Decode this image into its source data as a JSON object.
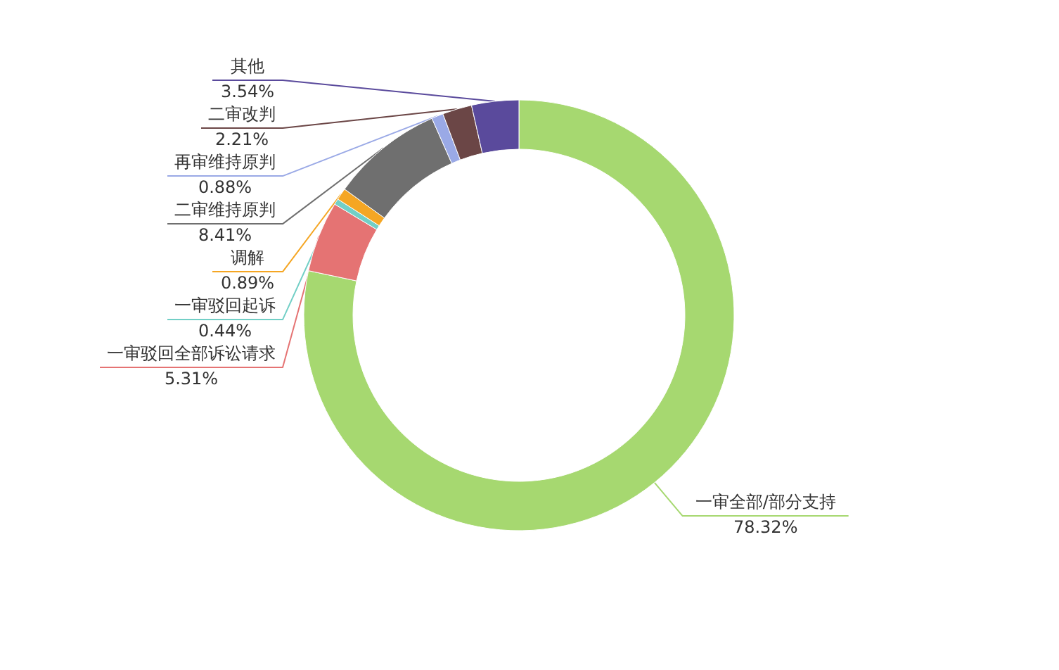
{
  "chart_data": {
    "type": "donut",
    "categories": [
      "一审全部/部分支持",
      "一审驳回全部诉讼请求",
      "一审驳回起诉",
      "调解",
      "二审维持原判",
      "再审维持原判",
      "二审改判",
      "其他"
    ],
    "values": [
      78.32,
      5.31,
      0.44,
      0.89,
      8.41,
      0.88,
      2.21,
      3.54
    ],
    "value_labels": [
      "78.32%",
      "5.31%",
      "0.44%",
      "0.89%",
      "8.41%",
      "0.88%",
      "2.21%",
      "3.54%"
    ],
    "colors": [
      "#a6d870",
      "#e57373",
      "#72cfc6",
      "#f5a623",
      "#6f6f6f",
      "#9aa9e6",
      "#6b4646",
      "#5a4a9c"
    ]
  }
}
